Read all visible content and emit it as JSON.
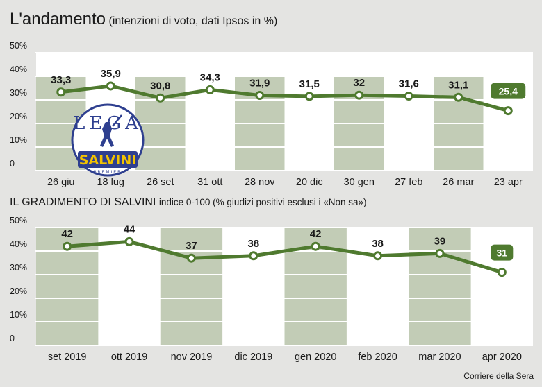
{
  "header": {
    "title": "L'andamento",
    "subtitle": "(intenzioni di voto, dati Ipsos in %)"
  },
  "section2": {
    "title": "IL GRADIMENTO DI SALVINI",
    "subtitle": "indice 0-100 (% giudizi positivi esclusi i «Non sa»)"
  },
  "logo": {
    "text_top": "LEGA",
    "text_main": "SALVINI",
    "text_small": "PREMIER"
  },
  "credit": "Corriere della Sera",
  "colors": {
    "line": "#4f7a2f",
    "band": "#c2ccb6",
    "plot_bg": "#ffffff",
    "page_bg": "#e4e4e2",
    "highlight": "#4f7a2f"
  },
  "chart_data": [
    {
      "type": "line",
      "title": "L'andamento",
      "subtitle": "(intenzioni di voto, dati Ipsos in %)",
      "categories": [
        "26 giu",
        "18 lug",
        "26 set",
        "31 ott",
        "28 nov",
        "20 dic",
        "30 gen",
        "27 feb",
        "26 mar",
        "23 apr"
      ],
      "values": [
        33.3,
        35.9,
        30.8,
        34.3,
        31.9,
        31.5,
        32,
        31.6,
        31.1,
        25.4
      ],
      "value_labels": [
        "33,3",
        "35,9",
        "30,8",
        "34,3",
        "31,9",
        "31,5",
        "32",
        "31,6",
        "31,1",
        "25,4"
      ],
      "yticks": [
        "0",
        "10%",
        "20%",
        "30%",
        "40%",
        "50%"
      ],
      "ylim": [
        0,
        50
      ],
      "grid": true,
      "highlight_last": true
    },
    {
      "type": "line",
      "title": "IL GRADIMENTO DI SALVINI",
      "subtitle": "indice 0-100 (% giudizi positivi esclusi i «Non sa»)",
      "categories": [
        "set 2019",
        "ott 2019",
        "nov 2019",
        "dic 2019",
        "gen 2020",
        "feb 2020",
        "mar 2020",
        "apr 2020"
      ],
      "values": [
        42,
        44,
        37,
        38,
        42,
        38,
        39,
        31
      ],
      "value_labels": [
        "42",
        "44",
        "37",
        "38",
        "42",
        "38",
        "39",
        "31"
      ],
      "yticks": [
        "0",
        "10%",
        "20%",
        "30%",
        "40%",
        "50%"
      ],
      "ylim": [
        0,
        50
      ],
      "grid": true,
      "highlight_last": true
    }
  ]
}
